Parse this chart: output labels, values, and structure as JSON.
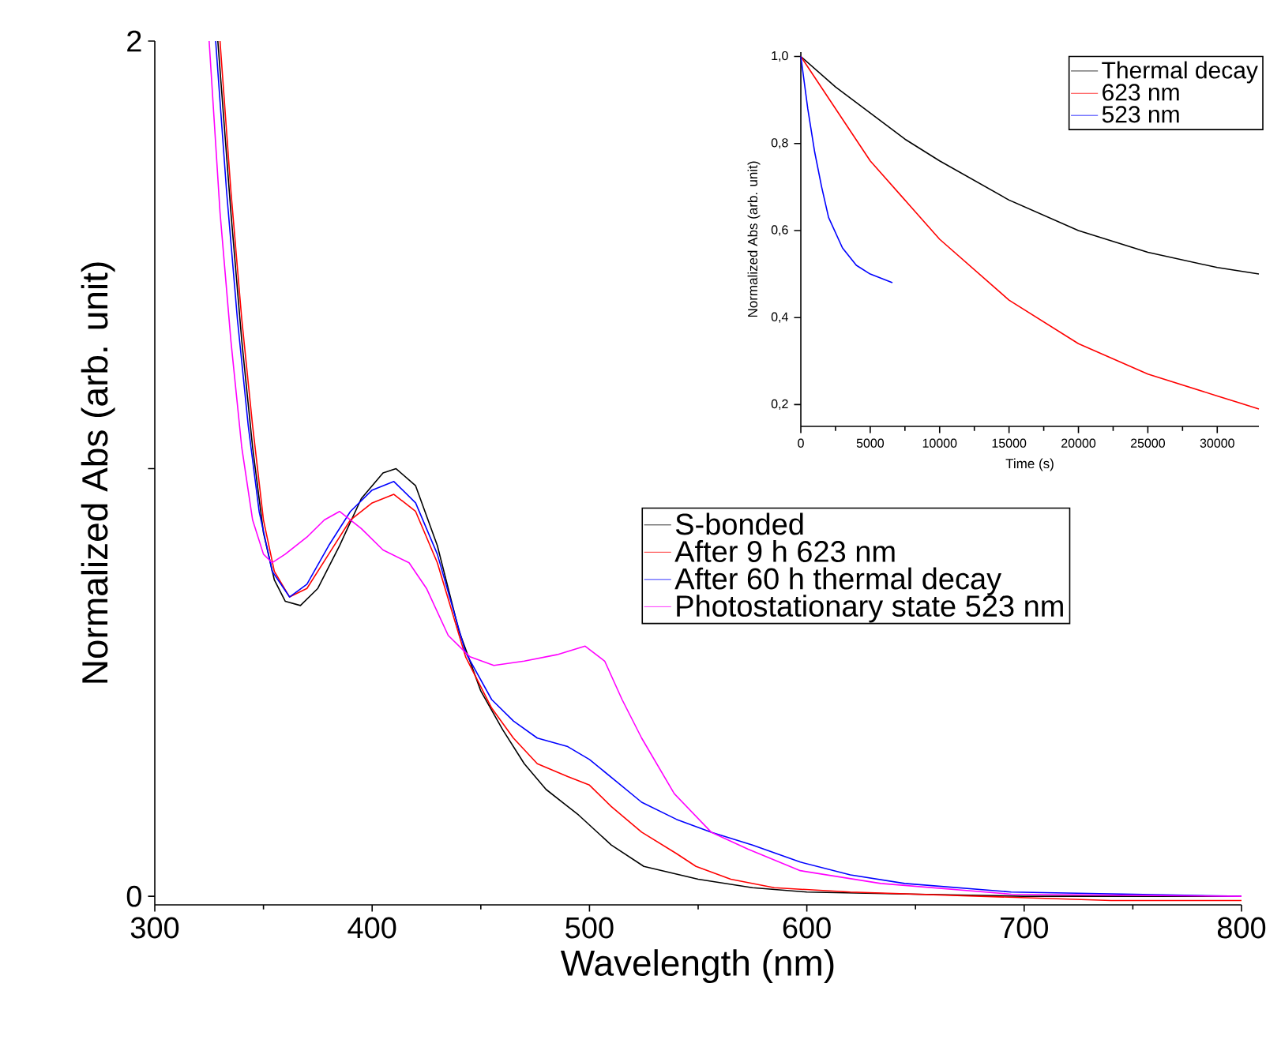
{
  "chart_data": [
    {
      "type": "line",
      "xlabel": "Wavelength (nm)",
      "ylabel": "Normalized Abs (arb. unit)",
      "xlim": [
        300,
        800
      ],
      "ylim": [
        -0.02,
        2
      ],
      "xticks": [
        300,
        400,
        500,
        600,
        700,
        800
      ],
      "yticks": [
        0,
        {
          "value": 1,
          "label": null
        },
        2
      ],
      "legend": "right",
      "series": [
        {
          "name": "S-bonded",
          "color": "#000000",
          "x": [
            329,
            335,
            340,
            345,
            350,
            355,
            360,
            367,
            375,
            385,
            395,
            405,
            411,
            420,
            430,
            440,
            450,
            460,
            470,
            480,
            495,
            510,
            525,
            550,
            575,
            600,
            650,
            700,
            800
          ],
          "values": [
            2.0,
            1.6,
            1.3,
            1.05,
            0.85,
            0.74,
            0.69,
            0.68,
            0.72,
            0.82,
            0.93,
            0.99,
            1.0,
            0.96,
            0.82,
            0.62,
            0.48,
            0.39,
            0.31,
            0.25,
            0.19,
            0.12,
            0.07,
            0.04,
            0.02,
            0.01,
            0.005,
            0.0,
            0.0
          ]
        },
        {
          "name": "After 9 h 623 nm",
          "color": "#ff0000",
          "x": [
            330,
            335,
            340,
            345,
            350,
            355,
            362,
            370,
            380,
            390,
            400,
            410,
            420,
            430,
            443,
            455,
            465,
            476,
            490,
            500,
            510,
            524,
            540,
            549,
            565,
            585,
            620,
            680,
            740,
            800
          ],
          "values": [
            2.0,
            1.65,
            1.35,
            1.1,
            0.88,
            0.76,
            0.7,
            0.72,
            0.8,
            0.88,
            0.92,
            0.94,
            0.9,
            0.78,
            0.56,
            0.44,
            0.37,
            0.31,
            0.28,
            0.26,
            0.21,
            0.15,
            0.1,
            0.07,
            0.04,
            0.02,
            0.01,
            0.0,
            -0.01,
            -0.01
          ]
        },
        {
          "name": "After 60 h thermal decay",
          "color": "#0000ff",
          "x": [
            328,
            333,
            338,
            343,
            348,
            354,
            362,
            370,
            380,
            390,
            400,
            410,
            420,
            430,
            443,
            455,
            465,
            476,
            490,
            500,
            512,
            524,
            540,
            556,
            575,
            597,
            620,
            645,
            694,
            750,
            800
          ],
          "values": [
            2.0,
            1.65,
            1.35,
            1.1,
            0.9,
            0.76,
            0.7,
            0.73,
            0.82,
            0.9,
            0.95,
            0.97,
            0.92,
            0.8,
            0.57,
            0.46,
            0.41,
            0.37,
            0.35,
            0.32,
            0.27,
            0.22,
            0.18,
            0.15,
            0.12,
            0.08,
            0.05,
            0.03,
            0.01,
            0.005,
            0.0
          ]
        },
        {
          "name": "Photostationary state 523 nm",
          "color": "#ff00ff",
          "x": [
            325,
            330,
            335,
            340,
            345,
            350,
            354,
            360,
            370,
            378,
            385,
            395,
            405,
            417,
            425,
            435,
            445,
            456,
            470,
            485,
            498,
            507,
            515,
            524,
            539,
            556,
            573,
            597,
            634,
            694,
            800
          ],
          "values": [
            2.0,
            1.6,
            1.3,
            1.05,
            0.88,
            0.8,
            0.78,
            0.8,
            0.84,
            0.88,
            0.9,
            0.86,
            0.81,
            0.78,
            0.72,
            0.61,
            0.56,
            0.54,
            0.55,
            0.565,
            0.585,
            0.55,
            0.46,
            0.37,
            0.24,
            0.15,
            0.11,
            0.06,
            0.03,
            0.005,
            0.0
          ]
        }
      ]
    },
    {
      "type": "line",
      "xlabel": "Time (s)",
      "ylabel": "Normalized Abs (arb. unit)",
      "xlim": [
        0,
        33000
      ],
      "ylim": [
        0.15,
        1.01
      ],
      "xticks": [
        0,
        5000,
        10000,
        15000,
        20000,
        25000,
        30000
      ],
      "yticks": [
        {
          "value": 0.2,
          "label": "0,2"
        },
        {
          "value": 0.4,
          "label": "0,4"
        },
        {
          "value": 0.6,
          "label": "0,6"
        },
        {
          "value": 0.8,
          "label": "0,8"
        },
        {
          "value": 1.0,
          "label": "1,0"
        }
      ],
      "legend": "top right",
      "series": [
        {
          "name": "Thermal decay",
          "color": "#000000",
          "x": [
            0,
            2500,
            5000,
            7500,
            10000,
            15000,
            20000,
            25000,
            30000,
            33000
          ],
          "values": [
            1.0,
            0.93,
            0.87,
            0.81,
            0.76,
            0.67,
            0.6,
            0.55,
            0.515,
            0.5
          ]
        },
        {
          "name": "623 nm",
          "color": "#ff0000",
          "x": [
            0,
            2500,
            5000,
            7500,
            10000,
            15000,
            20000,
            25000,
            30000,
            33000
          ],
          "values": [
            1.0,
            0.88,
            0.76,
            0.67,
            0.58,
            0.44,
            0.34,
            0.27,
            0.22,
            0.19
          ]
        },
        {
          "name": "523 nm",
          "color": "#0000ff",
          "x": [
            0,
            500,
            1000,
            1500,
            2000,
            3000,
            4000,
            5000,
            6600
          ],
          "values": [
            1.0,
            0.88,
            0.78,
            0.7,
            0.63,
            0.56,
            0.52,
            0.5,
            0.48
          ]
        }
      ]
    }
  ]
}
